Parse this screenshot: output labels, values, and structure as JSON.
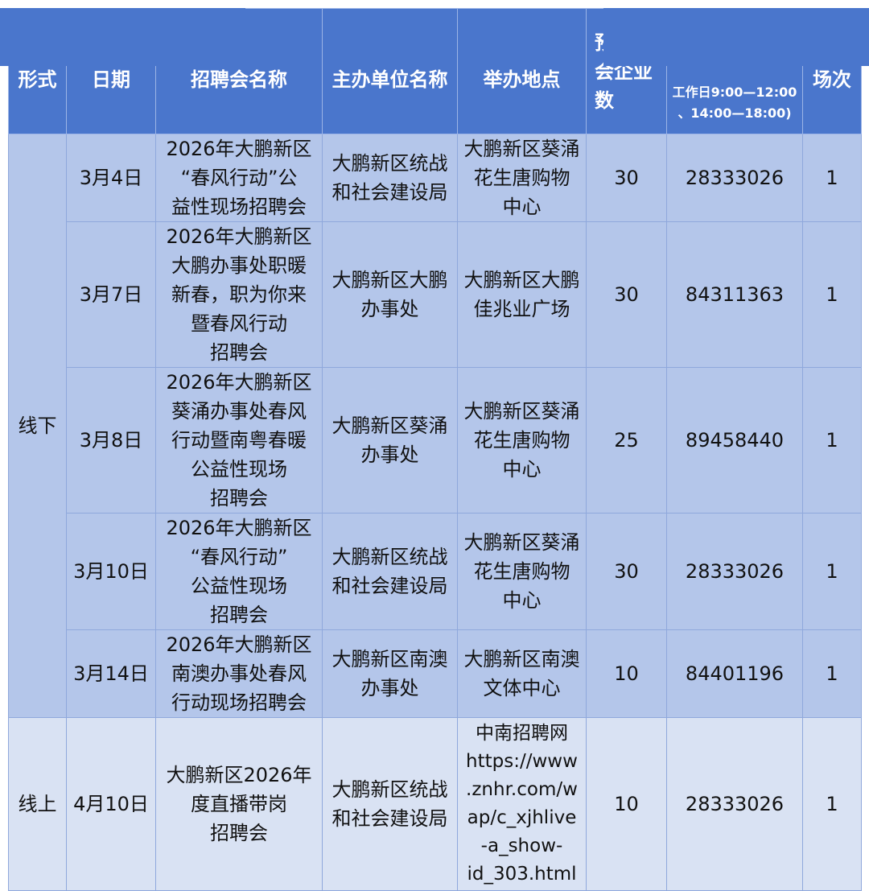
{
  "header": [
    "形式",
    "日期",
    "招聘会名称",
    "主办单位名称",
    "举办地点",
    "预计参\n会企业\n数",
    "工作日9:00—12:00\n、14:00—18:00)",
    "场次"
  ],
  "groups": {
    "offline": "线下",
    "online": "线上"
  },
  "rows": [
    {
      "date": "3月4日",
      "name": "2026年大鹏新区\n“春风行动”公\n益性现场招聘会",
      "org": "大鹏新区统战\n和社会建设局",
      "place": "大鹏新区葵涌\n花生唐购物\n中心",
      "count": "30",
      "phone": "28333026",
      "sessions": "1"
    },
    {
      "date": "3月7日",
      "name": "2026年大鹏新区\n大鹏办事处职暖\n新春，职为你来\n暨春风行动\n招聘会",
      "org": "大鹏新区大鹏\n办事处",
      "place": "大鹏新区大鹏\n佳兆业广场",
      "count": "30",
      "phone": "84311363",
      "sessions": "1"
    },
    {
      "date": "3月8日",
      "name": "2026年大鹏新区\n葵涌办事处春风\n行动暨南粤春暖\n公益性现场\n招聘会",
      "org": "大鹏新区葵涌\n办事处",
      "place": "大鹏新区葵涌\n花生唐购物\n中心",
      "count": "25",
      "phone": "89458440",
      "sessions": "1"
    },
    {
      "date": "3月10日",
      "name": "2026年大鹏新区\n“春风行动”\n公益性现场\n招聘会",
      "org": "大鹏新区统战\n和社会建设局",
      "place": "大鹏新区葵涌\n花生唐购物\n中心",
      "count": "30",
      "phone": "28333026",
      "sessions": "1"
    },
    {
      "date": "3月14日",
      "name": "2026年大鹏新区\n南澳办事处春风\n行动现场招聘会",
      "org": "大鹏新区南澳\n办事处",
      "place": "大鹏新区南澳\n文体中心",
      "count": "10",
      "phone": "84401196",
      "sessions": "1"
    },
    {
      "date": "4月10日",
      "name": "大鹏新区2026年\n度直播带岗\n招聘会",
      "org": "大鹏新区统战\n和社会建设局",
      "place": "中南招聘网\nhttps://www\n.znhr.com/w\nap/c_xjhlive\n-a_show-\nid_303.html",
      "count": "10",
      "phone": "28333026",
      "sessions": "1"
    }
  ],
  "colors": {
    "header": "#4a76cc",
    "offline_row": "#b4c6ea",
    "online_row": "#d9e2f3"
  }
}
